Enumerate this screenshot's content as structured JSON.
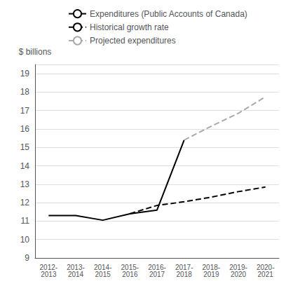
{
  "chart_data": {
    "type": "line",
    "y_label": "$ billions",
    "categories": [
      "2012-\n2013",
      "2013-\n2014",
      "2014-\n2015",
      "2015-\n2016",
      "2016-\n2017",
      "2017-\n2018",
      "2018-\n2019",
      "2019-\n2020",
      "2020-\n2021"
    ],
    "series": [
      {
        "name": "Expenditures (Public Accounts of Canada)",
        "color": "#000000",
        "line_style": "solid",
        "values": [
          11.3,
          11.3,
          11.05,
          11.4,
          11.6,
          15.4,
          null,
          null,
          null
        ]
      },
      {
        "name": "Historical growth rate",
        "color": "#000000",
        "line_style": "dashed",
        "values": [
          null,
          null,
          null,
          11.4,
          11.85,
          12.05,
          12.3,
          12.6,
          12.85
        ]
      },
      {
        "name": "Projected expenditures",
        "color": "#aaaaaa",
        "line_style": "dashed",
        "values": [
          null,
          null,
          null,
          null,
          null,
          15.4,
          16.15,
          16.85,
          17.75
        ]
      }
    ],
    "ylim": [
      9,
      19.5
    ],
    "yticks": [
      9,
      10,
      11,
      12,
      13,
      14,
      15,
      16,
      17,
      18,
      19
    ],
    "grid": true,
    "legend": "upper left"
  }
}
